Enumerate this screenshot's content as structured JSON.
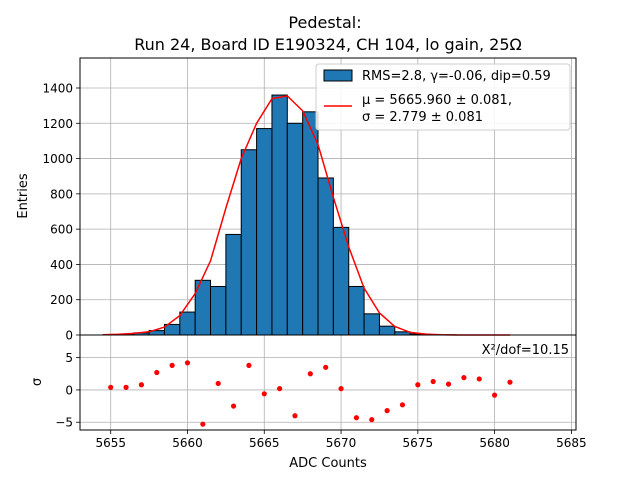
{
  "chart_data": {
    "type": "bar",
    "title": "Pedestal:",
    "subtitle": "Run 24, Board ID E190324, CH 104, lo gain, 25Ω",
    "xlabel": "ADC Counts",
    "ylabel": "Entries",
    "residual_ylabel": "σ",
    "xlim": [
      5653,
      5685.3
    ],
    "ylim": [
      0,
      1570
    ],
    "residual_ylim": [
      -6.2,
      8.5
    ],
    "grid": true,
    "legend_position": "top-right",
    "x_ticks": [
      5655,
      5660,
      5665,
      5670,
      5675,
      5680,
      5685
    ],
    "y_ticks": [
      0,
      200,
      400,
      600,
      800,
      1000,
      1200,
      1400
    ],
    "residual_ticks": [
      -5,
      0,
      5
    ],
    "chi2_label": "X²/dof=10.15",
    "histogram": {
      "legend": "RMS=2.8, γ=-0.06, dip=0.59",
      "color": "#1f77b4",
      "bin_edges": [
        5654.5,
        5655.5,
        5656.5,
        5657.5,
        5658.5,
        5659.5,
        5660.5,
        5661.5,
        5662.5,
        5663.5,
        5664.5,
        5665.5,
        5666.5,
        5667.5,
        5668.5,
        5669.5,
        5670.5,
        5671.5,
        5672.5,
        5673.5,
        5674.5,
        5675.5,
        5676.5,
        5677.5,
        5678.5,
        5679.5,
        5680.5,
        5681.5
      ],
      "counts": [
        2,
        4,
        12,
        25,
        60,
        130,
        310,
        275,
        570,
        1050,
        1170,
        1360,
        1200,
        1265,
        890,
        610,
        275,
        120,
        50,
        18,
        6,
        2,
        1,
        0,
        0,
        0,
        0
      ]
    },
    "fit": {
      "legend_line1": "μ = 5665.960 ± 0.081,",
      "legend_line2": "σ = 2.779 ± 0.081",
      "color": "#ff0000",
      "x": [
        5654.5,
        5655.5,
        5656.5,
        5657.5,
        5658.5,
        5659.5,
        5660.5,
        5661.5,
        5662.5,
        5663.5,
        5664.5,
        5665.5,
        5666.5,
        5667.5,
        5668.5,
        5669.5,
        5670.5,
        5671.5,
        5672.5,
        5673.5,
        5674.5,
        5675.5,
        5676.5,
        5677.5,
        5678.5,
        5679.5,
        5680.5,
        5681.0
      ],
      "y": [
        1,
        4,
        9,
        18,
        45,
        110,
        235,
        420,
        720,
        1000,
        1200,
        1340,
        1355,
        1270,
        1080,
        780,
        500,
        265,
        125,
        48,
        15,
        5,
        1,
        0,
        0,
        0,
        0,
        0
      ]
    },
    "residuals": {
      "color": "#ff0000",
      "x": [
        5655,
        5656,
        5657,
        5658,
        5659,
        5660,
        5661,
        5662,
        5663,
        5664,
        5665,
        5666,
        5667,
        5668,
        5669,
        5670,
        5671,
        5672,
        5673,
        5674,
        5675,
        5676,
        5677,
        5678,
        5679,
        5680,
        5681
      ],
      "y": [
        0.4,
        0.4,
        0.8,
        2.7,
        3.8,
        4.2,
        -5.3,
        1.0,
        -2.5,
        3.8,
        -0.6,
        0.2,
        -4.0,
        2.5,
        3.5,
        0.2,
        -4.3,
        -4.6,
        -3.2,
        -2.3,
        0.8,
        1.3,
        0.9,
        1.9,
        1.7,
        -0.8,
        1.2
      ]
    }
  }
}
